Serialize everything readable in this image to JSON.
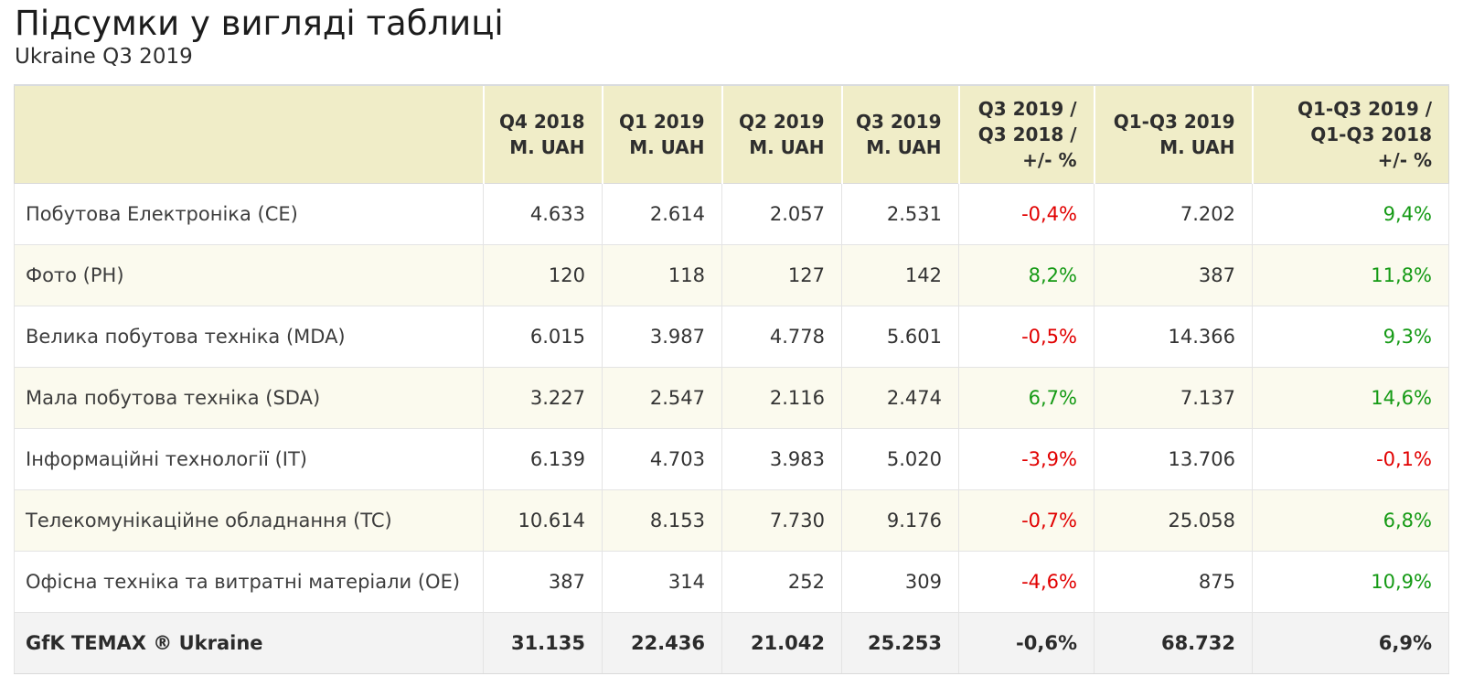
{
  "page": {
    "title": "Підсумки у вигляді таблиці",
    "subtitle": "Ukraine Q3 2019"
  },
  "colors": {
    "positive": "#159a15",
    "negative": "#e10000",
    "header_bg": "#f0edc8",
    "row_alt_bg": "#fbfaee",
    "total_bg": "#f3f3f3",
    "cell_border": "#e4e4e4",
    "frame_border": "#d9dcde"
  },
  "chart_data": {
    "type": "table",
    "title": "Підсумки у вигляді таблиці",
    "subtitle": "Ukraine Q3 2019",
    "columns": [
      "",
      "Q4 2018 M. UAH",
      "Q1 2019 M. UAH",
      "Q2 2019 M. UAH",
      "Q3 2019 M. UAH",
      "Q3 2019 / Q3 2018 / +/- %",
      "Q1-Q3 2019 M. UAH",
      "Q1-Q3 2019 / Q1-Q3 2018 +/- %"
    ],
    "header_lines": [
      [
        ""
      ],
      [
        "Q4 2018",
        "M. UAH"
      ],
      [
        "Q1 2019",
        "M. UAH"
      ],
      [
        "Q2 2019",
        "M. UAH"
      ],
      [
        "Q3 2019",
        "M. UAH"
      ],
      [
        "Q3 2019 /",
        "Q3 2018 /",
        "+/- %"
      ],
      [
        "Q1-Q3 2019",
        "M. UAH"
      ],
      [
        "Q1-Q3 2019 /",
        "Q1-Q3 2018",
        "+/- %"
      ]
    ],
    "rows": [
      {
        "label": "Побутова Електроніка (CE)",
        "values": [
          "4.633",
          "2.614",
          "2.057",
          "2.531",
          "-0,4%",
          "7.202",
          "9,4%"
        ],
        "value_kinds": [
          "num",
          "num",
          "num",
          "num",
          "neg",
          "num",
          "pos"
        ]
      },
      {
        "label": "Фото (PH)",
        "values": [
          "120",
          "118",
          "127",
          "142",
          "8,2%",
          "387",
          "11,8%"
        ],
        "value_kinds": [
          "num",
          "num",
          "num",
          "num",
          "pos",
          "num",
          "pos"
        ]
      },
      {
        "label": "Велика побутова техніка (MDA)",
        "values": [
          "6.015",
          "3.987",
          "4.778",
          "5.601",
          "-0,5%",
          "14.366",
          "9,3%"
        ],
        "value_kinds": [
          "num",
          "num",
          "num",
          "num",
          "neg",
          "num",
          "pos"
        ]
      },
      {
        "label": "Мала побутова техніка (SDA)",
        "values": [
          "3.227",
          "2.547",
          "2.116",
          "2.474",
          "6,7%",
          "7.137",
          "14,6%"
        ],
        "value_kinds": [
          "num",
          "num",
          "num",
          "num",
          "pos",
          "num",
          "pos"
        ]
      },
      {
        "label": "Інформаційні технології (IT)",
        "values": [
          "6.139",
          "4.703",
          "3.983",
          "5.020",
          "-3,9%",
          "13.706",
          "-0,1%"
        ],
        "value_kinds": [
          "num",
          "num",
          "num",
          "num",
          "neg",
          "num",
          "neg"
        ]
      },
      {
        "label": "Телекомунікаційне обладнання (TC)",
        "values": [
          "10.614",
          "8.153",
          "7.730",
          "9.176",
          "-0,7%",
          "25.058",
          "6,8%"
        ],
        "value_kinds": [
          "num",
          "num",
          "num",
          "num",
          "neg",
          "num",
          "pos"
        ]
      },
      {
        "label": "Офісна техніка та витратні матеріали (OE)",
        "values": [
          "387",
          "314",
          "252",
          "309",
          "-4,6%",
          "875",
          "10,9%"
        ],
        "value_kinds": [
          "num",
          "num",
          "num",
          "num",
          "neg",
          "num",
          "pos"
        ]
      }
    ],
    "total_row": {
      "label": "GfK TEMAX ® Ukraine",
      "values": [
        "31.135",
        "22.436",
        "21.042",
        "25.253",
        "-0,6%",
        "68.732",
        "6,9%"
      ],
      "value_kinds": [
        "num",
        "num",
        "num",
        "num",
        "neg",
        "num",
        "pos"
      ]
    }
  }
}
